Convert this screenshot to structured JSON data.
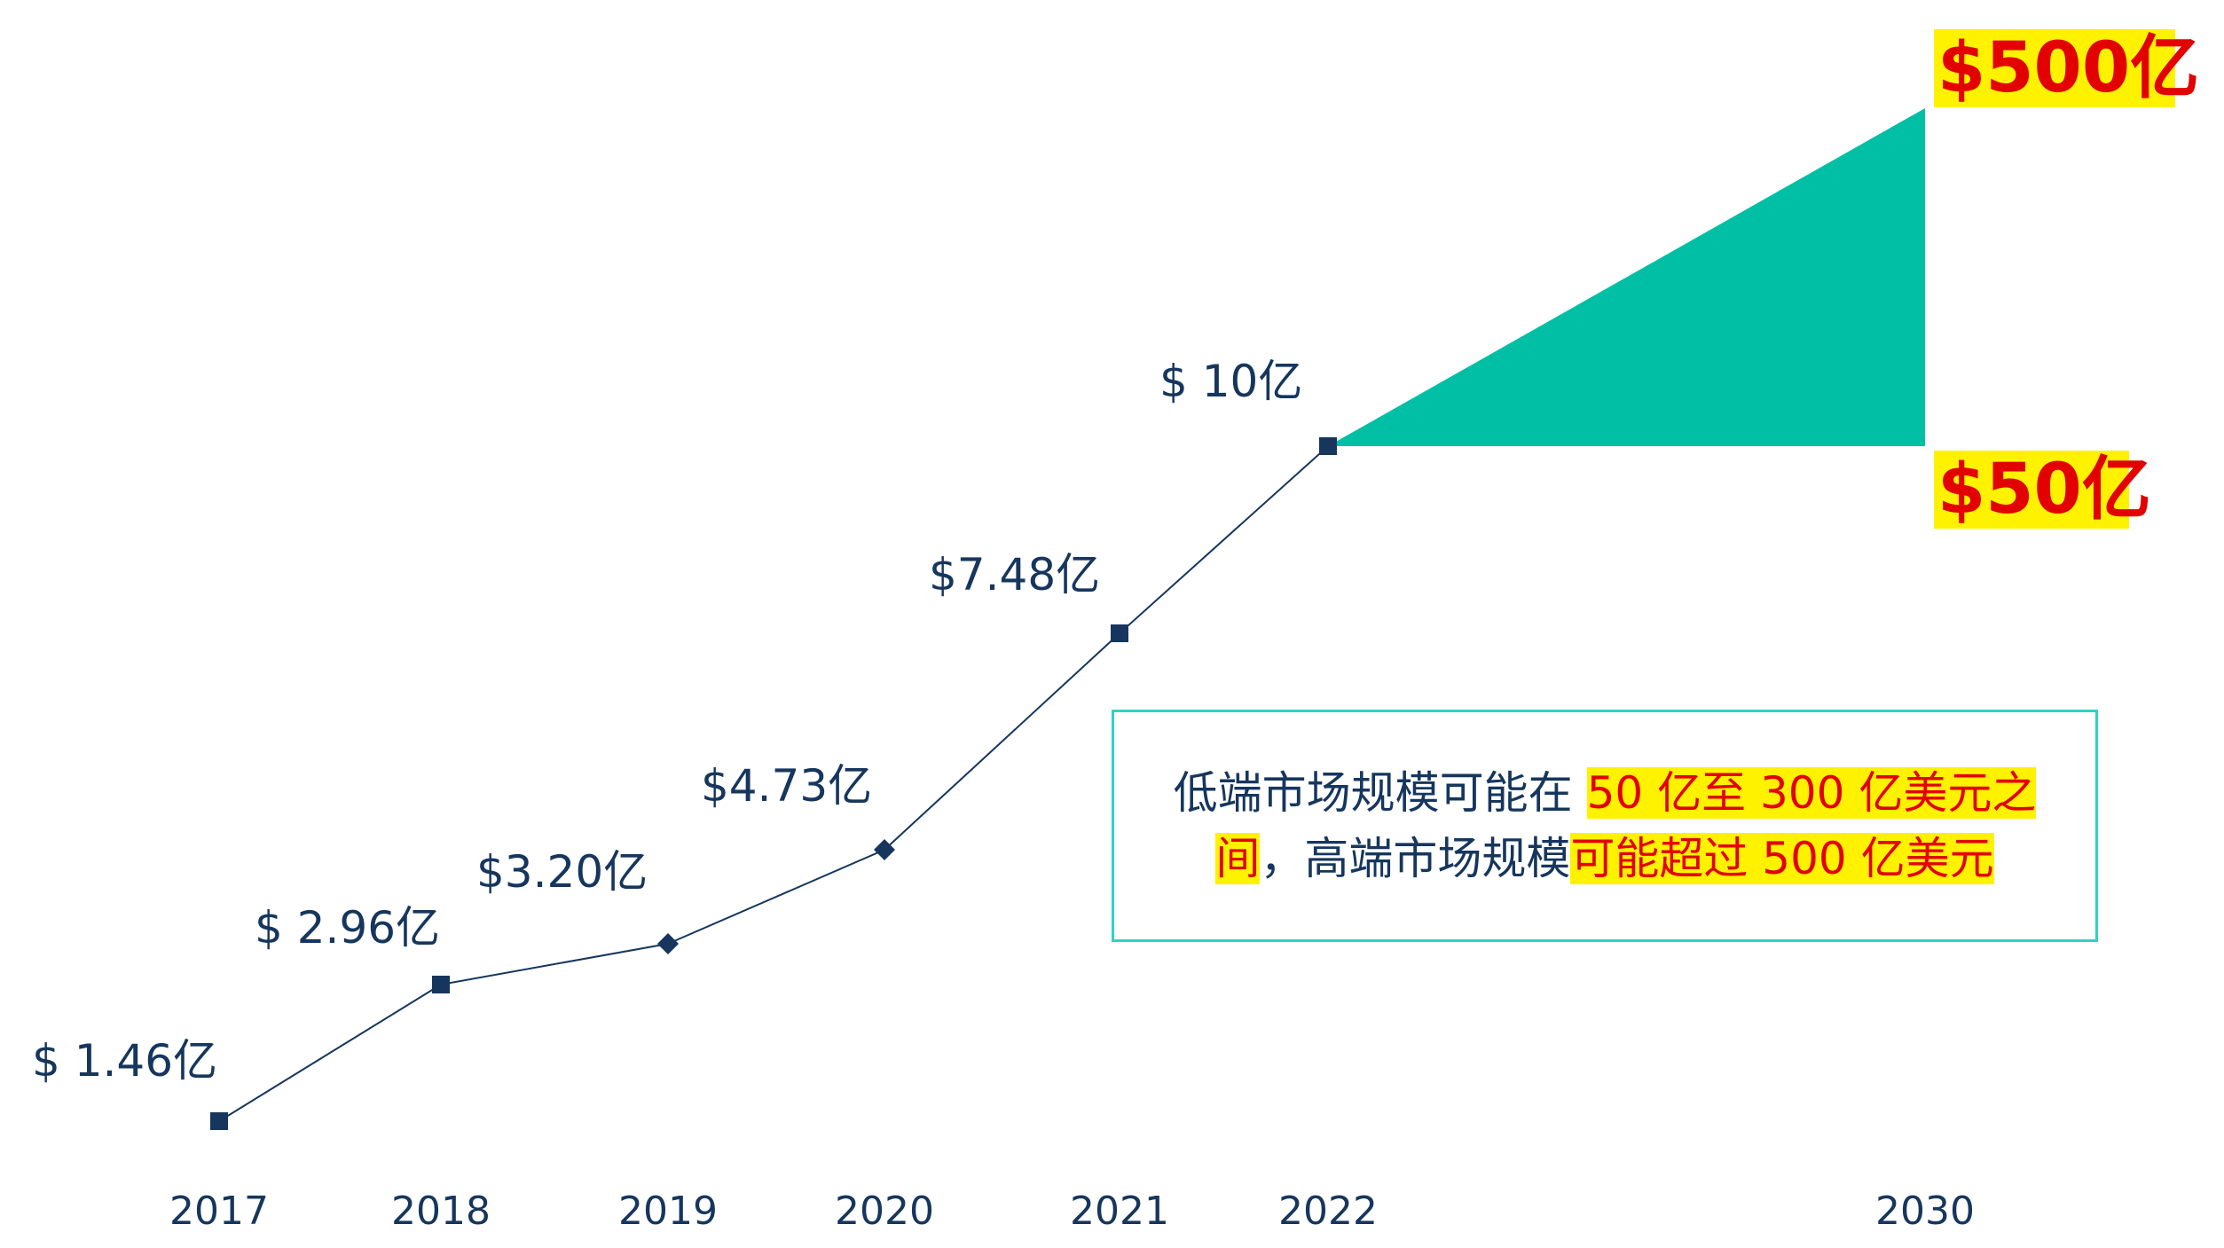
{
  "chart_data": {
    "type": "line",
    "x": [
      "2017",
      "2018",
      "2019",
      "2020",
      "2021",
      "2022",
      "2030"
    ],
    "series": [
      {
        "values": [
          1.46,
          2.96,
          3.2,
          4.73,
          7.48,
          10,
          null
        ]
      }
    ],
    "data_labels": [
      "$ 1.46亿",
      "$ 2.96亿",
      "$3.20亿",
      "$4.73亿",
      "$7.48亿",
      "$ 10亿"
    ],
    "projection_2030": {
      "low": 50,
      "high": 500,
      "low_label": "$50亿",
      "high_label": "$500亿",
      "fill_color": "#00bfa5"
    },
    "line_color": "#16365d",
    "label_color": "#16365d",
    "highlight_color": "#fff200",
    "highlight_text_color": "#e30000",
    "title": "",
    "xlabel": "",
    "ylabel": "",
    "grid": false
  },
  "note": {
    "line1_plain": "低端市场规模可能在 ",
    "line1_highlight": "50 亿至 300 亿美元之",
    "line2_highlight_a": "间",
    "line2_plain": "，高端市场规模",
    "line2_highlight_b": "可能超过 500 亿美元"
  }
}
